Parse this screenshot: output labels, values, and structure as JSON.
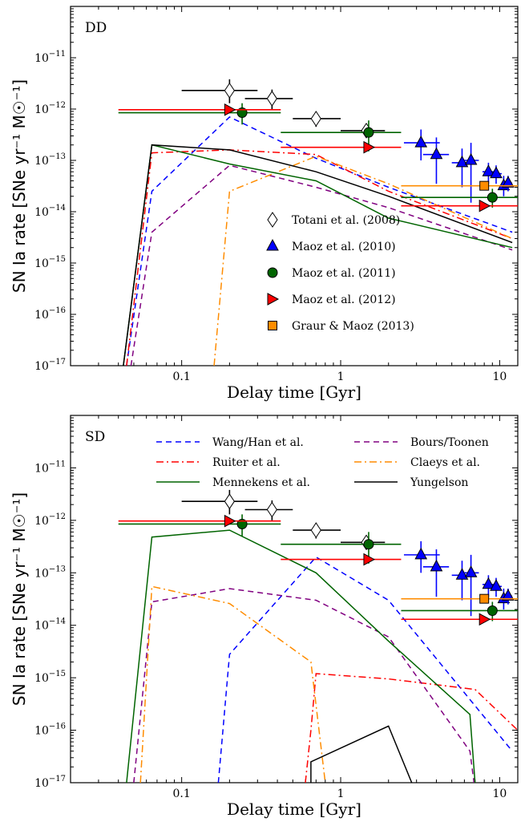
{
  "colors": {
    "wang_han": "#0000ff",
    "ruiter": "#ff0000",
    "bours_toonen": "#800080",
    "claeys": "#ff8c00",
    "mennekens": "#006400",
    "yungelson": "#000000",
    "totani": "#ffffff",
    "maoz2010": "#0000ff",
    "maoz2011": "#006400",
    "maoz2012": "#ff0000",
    "graur": "#ff8c00"
  },
  "chart_data": [
    {
      "type": "line",
      "panel_label": "DD",
      "xlabel": "Delay time [Gyr]",
      "ylabel": "SN Ia rate [SNe yr⁻¹ M☉⁻¹]",
      "xscale": "log",
      "yscale": "log",
      "xlim": [
        0.02,
        13
      ],
      "ylim": [
        1e-17,
        1e-10
      ],
      "x_ticklabels": [
        "0.1",
        "1",
        "10"
      ],
      "y_ticklabels": [
        "10⁻¹⁷",
        "10⁻¹⁶",
        "10⁻¹⁵",
        "10⁻¹⁴",
        "10⁻¹³",
        "10⁻¹²",
        "10⁻¹¹"
      ],
      "legend_position": "lower-right",
      "legend": [
        "Totani et al. (2008)",
        "Maoz et al. (2010)",
        "Maoz et al. (2011)",
        "Maoz et al. (2012)",
        "Graur & Maoz (2013)"
      ],
      "series": [
        {
          "key": "wang_han",
          "style": "dashed",
          "x": [
            0.045,
            0.065,
            0.2,
            0.7,
            2,
            12
          ],
          "y": [
            1e-17,
            2.5e-14,
            7e-13,
            1.1e-13,
            3e-14,
            4e-15
          ]
        },
        {
          "key": "ruiter",
          "style": "dashdot",
          "x": [
            0.045,
            0.065,
            0.2,
            0.7,
            2,
            12
          ],
          "y": [
            1e-17,
            1.4e-13,
            1.6e-13,
            1.3e-13,
            2.5e-14,
            3e-15
          ]
        },
        {
          "key": "bours_toonen",
          "style": "dashed",
          "x": [
            0.048,
            0.065,
            0.2,
            0.7,
            2,
            12
          ],
          "y": [
            1e-17,
            4e-15,
            8e-14,
            3e-14,
            1.2e-14,
            1.8e-15
          ]
        },
        {
          "key": "claeys",
          "style": "dashdot",
          "x": [
            0.16,
            0.2,
            0.7,
            2,
            12
          ],
          "y": [
            1e-17,
            2.5e-14,
            1.2e-13,
            3.5e-14,
            3e-15
          ]
        },
        {
          "key": "mennekens",
          "style": "solid",
          "x": [
            0.043,
            0.065,
            0.2,
            0.7,
            2,
            12
          ],
          "y": [
            1e-17,
            2e-13,
            8.5e-14,
            4e-14,
            7.5e-15,
            2e-15
          ]
        },
        {
          "key": "yungelson",
          "style": "solid",
          "x": [
            0.043,
            0.065,
            0.2,
            0.7,
            2,
            12
          ],
          "y": [
            1e-17,
            2e-13,
            1.6e-13,
            6e-14,
            2e-14,
            2.5e-15
          ]
        }
      ],
      "observations": [
        {
          "key": "totani",
          "marker": "diamond",
          "points": [
            {
              "x": 0.2,
              "y": 2.3e-12,
              "xerr": [
                0.1,
                0.3
              ],
              "yerr": [
                1.3e-12,
                3.8e-12
              ]
            },
            {
              "x": 0.37,
              "y": 1.6e-12,
              "xerr": [
                0.25,
                0.5
              ],
              "yerr": [
                1e-12,
                2.4e-12
              ]
            },
            {
              "x": 0.7,
              "y": 6.5e-13,
              "xerr": [
                0.5,
                1.0
              ],
              "yerr": [
                4.5e-13,
                9e-13
              ]
            },
            {
              "x": 1.45,
              "y": 3.8e-13,
              "xerr": [
                1.0,
                1.9
              ],
              "yerr": [
                2.8e-13,
                5e-13
              ]
            }
          ]
        },
        {
          "key": "maoz2010",
          "marker": "triangle",
          "points": [
            {
              "x": 3.2,
              "y": 2.2e-13,
              "xerr": [
                2.5,
                4.2
              ],
              "yerr": [
                1e-13,
                4e-13
              ]
            },
            {
              "x": 4.0,
              "y": 1.3e-13,
              "xerr": [
                3.3,
                4.8
              ],
              "yerr": [
                3.5e-14,
                2.8e-13
              ]
            },
            {
              "x": 5.8,
              "y": 9e-14,
              "xerr": [
                5.0,
                7.0
              ],
              "yerr": [
                3e-14,
                1.7e-13
              ]
            },
            {
              "x": 6.6,
              "y": 1e-13,
              "xerr": [
                6.0,
                7.4
              ],
              "yerr": [
                1.5e-14,
                2.2e-13
              ]
            },
            {
              "x": 8.5,
              "y": 6e-14,
              "xerr": [
                7.8,
                9.4
              ],
              "yerr": [
                3.5e-14,
                9e-14
              ]
            },
            {
              "x": 9.5,
              "y": 5.5e-14,
              "xerr": [
                8.8,
                10.3
              ],
              "yerr": [
                3.5e-14,
                8e-14
              ]
            },
            {
              "x": 10.6,
              "y": 3.2e-14,
              "xerr": [
                10.0,
                11.2
              ],
              "yerr": [
                2e-14,
                5e-14
              ]
            },
            {
              "x": 11.3,
              "y": 3.6e-14,
              "xerr": [
                10.8,
                12.0
              ],
              "yerr": [
                2.5e-14,
                5e-14
              ]
            }
          ]
        },
        {
          "key": "maoz2011",
          "marker": "circle",
          "points": [
            {
              "x": 0.24,
              "y": 8.5e-13,
              "xerr": [
                0.04,
                0.42
              ],
              "yerr": [
                5e-13,
                1.3e-12
              ]
            },
            {
              "x": 1.5,
              "y": 3.5e-13,
              "xerr": [
                0.42,
                2.4
              ],
              "yerr": [
                1.5e-13,
                6e-13
              ]
            },
            {
              "x": 9.0,
              "y": 1.9e-14,
              "xerr": [
                2.4,
                13
              ],
              "yerr": [
                1.2e-14,
                2.8e-14
              ]
            }
          ]
        },
        {
          "key": "maoz2012",
          "marker": "triangle-right",
          "points": [
            {
              "x": 0.2,
              "y": 9.7e-13,
              "xerr": [
                0.04,
                0.42
              ],
              "yerr": [
                9.7e-13,
                9.7e-13
              ]
            },
            {
              "x": 1.5,
              "y": 1.8e-13,
              "xerr": [
                0.42,
                2.4
              ],
              "yerr": [
                1.8e-13,
                1.8e-13
              ]
            },
            {
              "x": 8.0,
              "y": 1.3e-14,
              "xerr": [
                2.4,
                13
              ],
              "yerr": [
                1.3e-14,
                1.3e-14
              ]
            }
          ]
        },
        {
          "key": "graur",
          "marker": "square",
          "points": [
            {
              "x": 8.0,
              "y": 3.2e-14,
              "xerr": [
                2.4,
                13
              ],
              "yerr": [
                3.2e-14,
                3.2e-14
              ]
            }
          ]
        }
      ]
    },
    {
      "type": "line",
      "panel_label": "SD",
      "xlabel": "Delay time [Gyr]",
      "ylabel": "SN Ia rate [SNe yr⁻¹ M☉⁻¹]",
      "xscale": "log",
      "yscale": "log",
      "xlim": [
        0.02,
        13
      ],
      "ylim": [
        1e-17,
        1e-10
      ],
      "x_ticklabels": [
        "0.1",
        "1",
        "10"
      ],
      "y_ticklabels": [
        "10⁻¹⁷",
        "10⁻¹⁶",
        "10⁻¹⁵",
        "10⁻¹⁴",
        "10⁻¹³",
        "10⁻¹²",
        "10⁻¹¹"
      ],
      "legend_position": "top",
      "legend": [
        "Wang/Han et al.",
        "Bours/Toonen",
        "Ruiter et al.",
        "Claeys et al.",
        "Mennekens et al.",
        "Yungelson"
      ],
      "series": [
        {
          "key": "wang_han",
          "style": "dashed",
          "x": [
            0.17,
            0.2,
            0.7,
            2,
            12
          ],
          "y": [
            1e-17,
            2.8e-15,
            2e-13,
            3e-14,
            4e-17
          ]
        },
        {
          "key": "ruiter",
          "style": "dashdot",
          "x": [
            0.6,
            0.65,
            0.7,
            2,
            7,
            13
          ],
          "y": [
            1e-17,
            1e-16,
            1.2e-15,
            9.5e-16,
            6e-16,
            1e-16
          ]
        },
        {
          "key": "bours_toonen",
          "style": "dashed",
          "x": [
            0.05,
            0.065,
            0.2,
            0.7,
            2,
            6.5,
            6.9
          ],
          "y": [
            1e-17,
            2.8e-14,
            5e-14,
            3e-14,
            6e-15,
            4e-17,
            1e-17
          ]
        },
        {
          "key": "claeys",
          "style": "dashdot",
          "x": [
            0.055,
            0.065,
            0.2,
            0.65,
            0.8
          ],
          "y": [
            1e-17,
            5.5e-14,
            2.6e-14,
            2e-15,
            1e-17
          ]
        },
        {
          "key": "mennekens",
          "style": "solid",
          "x": [
            0.045,
            0.065,
            0.2,
            0.7,
            2,
            6.5,
            7.0
          ],
          "y": [
            1e-17,
            4.8e-13,
            6.5e-13,
            1e-13,
            5e-15,
            2e-16,
            1e-17
          ]
        },
        {
          "key": "yungelson",
          "style": "solid",
          "x": [
            0.65,
            0.65,
            2.0,
            2.8
          ],
          "y": [
            1e-17,
            2.5e-17,
            1.2e-16,
            1e-17
          ]
        }
      ],
      "observations": [
        {
          "key": "totani",
          "marker": "diamond",
          "points": [
            {
              "x": 0.2,
              "y": 2.3e-12,
              "xerr": [
                0.1,
                0.3
              ],
              "yerr": [
                1.3e-12,
                3.8e-12
              ]
            },
            {
              "x": 0.37,
              "y": 1.6e-12,
              "xerr": [
                0.25,
                0.5
              ],
              "yerr": [
                1e-12,
                2.4e-12
              ]
            },
            {
              "x": 0.7,
              "y": 6.5e-13,
              "xerr": [
                0.5,
                1.0
              ],
              "yerr": [
                4.5e-13,
                9e-13
              ]
            },
            {
              "x": 1.45,
              "y": 3.8e-13,
              "xerr": [
                1.0,
                1.9
              ],
              "yerr": [
                2.8e-13,
                5e-13
              ]
            }
          ]
        },
        {
          "key": "maoz2010",
          "marker": "triangle",
          "points": [
            {
              "x": 3.2,
              "y": 2.2e-13,
              "xerr": [
                2.5,
                4.2
              ],
              "yerr": [
                1e-13,
                4e-13
              ]
            },
            {
              "x": 4.0,
              "y": 1.3e-13,
              "xerr": [
                3.3,
                4.8
              ],
              "yerr": [
                3.5e-14,
                2.8e-13
              ]
            },
            {
              "x": 5.8,
              "y": 9e-14,
              "xerr": [
                5.0,
                7.0
              ],
              "yerr": [
                3e-14,
                1.7e-13
              ]
            },
            {
              "x": 6.6,
              "y": 1e-13,
              "xerr": [
                6.0,
                7.4
              ],
              "yerr": [
                1.5e-14,
                2.2e-13
              ]
            },
            {
              "x": 8.5,
              "y": 6e-14,
              "xerr": [
                7.8,
                9.4
              ],
              "yerr": [
                3.5e-14,
                9e-14
              ]
            },
            {
              "x": 9.5,
              "y": 5.5e-14,
              "xerr": [
                8.8,
                10.3
              ],
              "yerr": [
                3.5e-14,
                8e-14
              ]
            },
            {
              "x": 10.6,
              "y": 3.2e-14,
              "xerr": [
                10.0,
                11.2
              ],
              "yerr": [
                2e-14,
                5e-14
              ]
            },
            {
              "x": 11.3,
              "y": 3.6e-14,
              "xerr": [
                10.8,
                12.0
              ],
              "yerr": [
                2.5e-14,
                5e-14
              ]
            }
          ]
        },
        {
          "key": "maoz2011",
          "marker": "circle",
          "points": [
            {
              "x": 0.24,
              "y": 8.5e-13,
              "xerr": [
                0.04,
                0.42
              ],
              "yerr": [
                5e-13,
                1.3e-12
              ]
            },
            {
              "x": 1.5,
              "y": 3.5e-13,
              "xerr": [
                0.42,
                2.4
              ],
              "yerr": [
                1.5e-13,
                6e-13
              ]
            },
            {
              "x": 9.0,
              "y": 1.9e-14,
              "xerr": [
                2.4,
                13
              ],
              "yerr": [
                1.2e-14,
                2.8e-14
              ]
            }
          ]
        },
        {
          "key": "maoz2012",
          "marker": "triangle-right",
          "points": [
            {
              "x": 0.2,
              "y": 9.7e-13,
              "xerr": [
                0.04,
                0.42
              ],
              "yerr": [
                9.7e-13,
                9.7e-13
              ]
            },
            {
              "x": 1.5,
              "y": 1.8e-13,
              "xerr": [
                0.42,
                2.4
              ],
              "yerr": [
                1.8e-13,
                1.8e-13
              ]
            },
            {
              "x": 8.0,
              "y": 1.3e-14,
              "xerr": [
                2.4,
                13
              ],
              "yerr": [
                1.3e-14,
                1.3e-14
              ]
            }
          ]
        },
        {
          "key": "graur",
          "marker": "square",
          "points": [
            {
              "x": 8.0,
              "y": 3.2e-14,
              "xerr": [
                2.4,
                13
              ],
              "yerr": [
                3.2e-14,
                3.2e-14
              ]
            }
          ]
        }
      ]
    }
  ]
}
